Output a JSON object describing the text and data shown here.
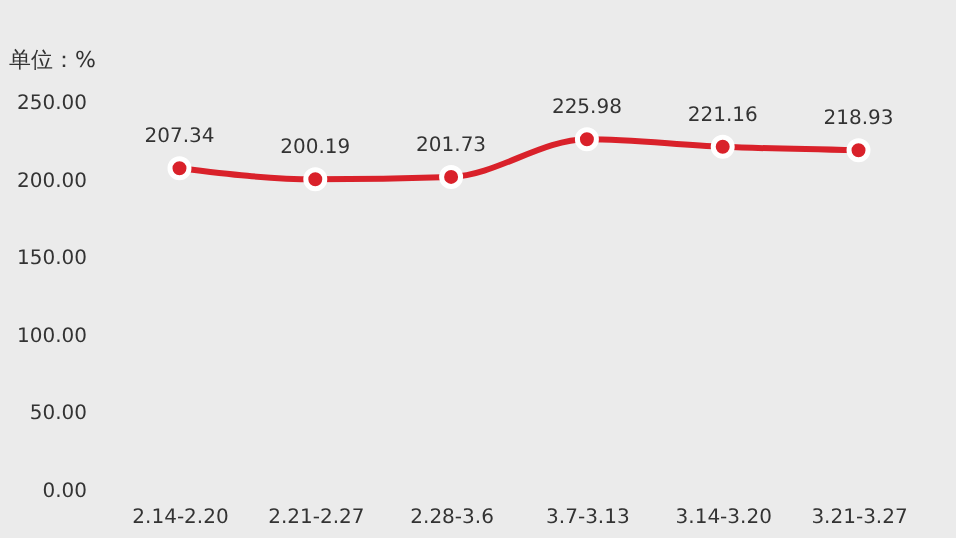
{
  "chart_data": {
    "type": "line",
    "ylabel": "单位：%",
    "categories": [
      "2.14-2.20",
      "2.21-2.27",
      "2.28-3.6",
      "3.7-3.13",
      "3.14-3.20",
      "3.21-3.27"
    ],
    "series": [
      {
        "color": "#d9212a",
        "values": [
          207.34,
          200.19,
          201.73,
          225.98,
          221.16,
          218.93
        ]
      }
    ],
    "ylim": [
      0,
      250
    ],
    "yticks": [
      {
        "value": 0,
        "label": "0.00"
      },
      {
        "value": 50,
        "label": "50.00"
      },
      {
        "value": 100,
        "label": "100.00"
      },
      {
        "value": 150,
        "label": "150.00"
      },
      {
        "value": 200,
        "label": "200.00"
      },
      {
        "value": 250,
        "label": "250.00"
      }
    ],
    "data_labels": true,
    "grid": false,
    "legend": false,
    "marker": "circle",
    "line_style": "solid"
  }
}
